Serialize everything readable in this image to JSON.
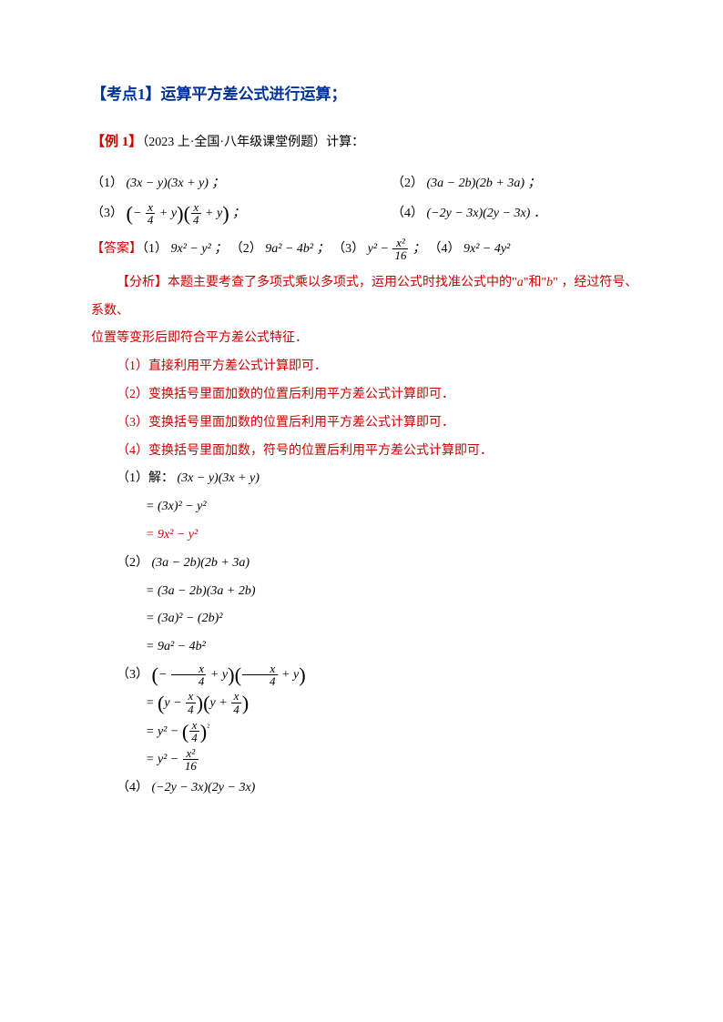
{
  "colors": {
    "title": "#003399",
    "red": "#cc0000",
    "black": "#000000",
    "background": "#ffffff"
  },
  "fonts": {
    "body_size": 14,
    "title_size": 17,
    "example_label_size": 15
  },
  "title": "【考点1】运算平方差公式进行运算；",
  "example": {
    "label": "【例 1】",
    "source": "（2023 上·全国·八年级课堂例题）计算：",
    "items": {
      "n1": "（1）",
      "f1": "(3x − y)(3x + y) ；",
      "n2": "（2）",
      "f2": "(3a − 2b)(2b + 3a) ；",
      "n3": "（3）",
      "f3_left_paren": "(",
      "f3a": "− ",
      "f3_frac_num": "x",
      "f3_frac_den": "4",
      "f3b": " + y",
      "f3_right_paren": ")",
      "f3_sep": " ；",
      "n4": "（4）",
      "f4": "(−2y − 3x)(2y − 3x) ．"
    }
  },
  "answer": {
    "label": "【答案】",
    "p1n": "（1）",
    "p1": "9x² − y² ；",
    "p2n": "（2）",
    "p2": "9a² − 4b² ；",
    "p3n": "（3）",
    "p3a": "y² − ",
    "p3_num": "x²",
    "p3_den": "16",
    "p3b": " ；",
    "p4n": "（4）",
    "p4": "9x² − 4y²"
  },
  "analysis": {
    "label": "【分析】",
    "line1a": "本题主要考查了多项式乘以多项式，运用公式时找准公式中的\"",
    "line1_a": "a",
    "line1b": "\"和\"",
    "line1_b2": "b",
    "line1c": "\" ，经过符号、系数、",
    "line2": "位置等变形后即符合平方差公式特征．",
    "s1": "（1）直接利用平方差公式计算即可．",
    "s2": "（2）变换括号里面加数的位置后利用平方差公式计算即可．",
    "s3": "（3）变换括号里面加数的位置后利用平方差公式计算即可．",
    "s4": "（4）变换括号里面加数，符号的位置后利用平方差公式计算即可．"
  },
  "solutions": {
    "s1_h": "（1）解：",
    "s1_0": "(3x − y)(3x + y)",
    "s1_1": "= (3x)² − y²",
    "s1_2": "= 9x² − y²",
    "s2_h": "（2）",
    "s2_0": "(3a − 2b)(2b + 3a)",
    "s2_1": "= (3a − 2b)(3a + 2b)",
    "s2_2": "= (3a)² − (2b)²",
    "s2_3": "= 9a² − 4b²",
    "s3_h": "（3）",
    "s3_frac_num": "x",
    "s3_frac_den": "4",
    "s3_0a": "− ",
    "s3_0b": " + y",
    "s3_0c": " + y",
    "s3_1a": "= ",
    "s3_1b": "y − ",
    "s3_1c": "y + ",
    "s3_2a": "= y² − ",
    "s3_2_sq": "²",
    "s3_3a": "= y² − ",
    "s3_3_num": "x²",
    "s3_3_den": "16",
    "s4_h": "（4）",
    "s4_0": "(−2y − 3x)(2y − 3x)"
  }
}
